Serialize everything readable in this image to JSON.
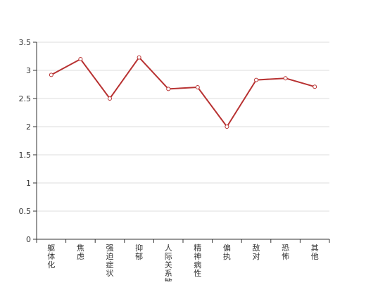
{
  "chart_data": {
    "type": "line",
    "categories": [
      "躯体化",
      "焦虑",
      "强迫症状",
      "抑郁",
      "人际关系敏感",
      "精神病性",
      "偏执",
      "敌对",
      "恐怖",
      "其他"
    ],
    "series": [
      {
        "values": [
          2.92,
          3.2,
          2.5,
          3.23,
          2.67,
          2.7,
          2.0,
          2.83,
          2.86,
          2.71
        ]
      }
    ],
    "ylim": [
      0,
      3.5
    ],
    "yticks": [
      "0",
      "0.5",
      "1",
      "1.5",
      "2",
      "2.5",
      "3",
      "3.5"
    ],
    "grid": true,
    "colors": {
      "line": "#b83232",
      "grid": "#dddddd",
      "axis": "#333333"
    }
  }
}
